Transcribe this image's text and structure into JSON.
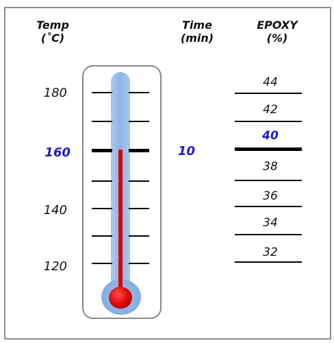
{
  "headers": {
    "temp": [
      "Temp",
      "(˚C)"
    ],
    "time": [
      "Time",
      "(min)"
    ],
    "epoxy": [
      "EPOXY",
      "(%)"
    ]
  },
  "temp_labels": [
    "180",
    "160",
    "140",
    "120"
  ],
  "highlight_temp": "160",
  "time_value": "10",
  "epoxy_values": [
    "44",
    "42",
    "40",
    "38",
    "36",
    "34",
    "32"
  ],
  "highlight_epoxy": "40",
  "thermometer_reading_c": 160,
  "colors": {
    "highlight": "#1a1acc",
    "mercury": "#e00000",
    "tube": "#8db6e6"
  }
}
